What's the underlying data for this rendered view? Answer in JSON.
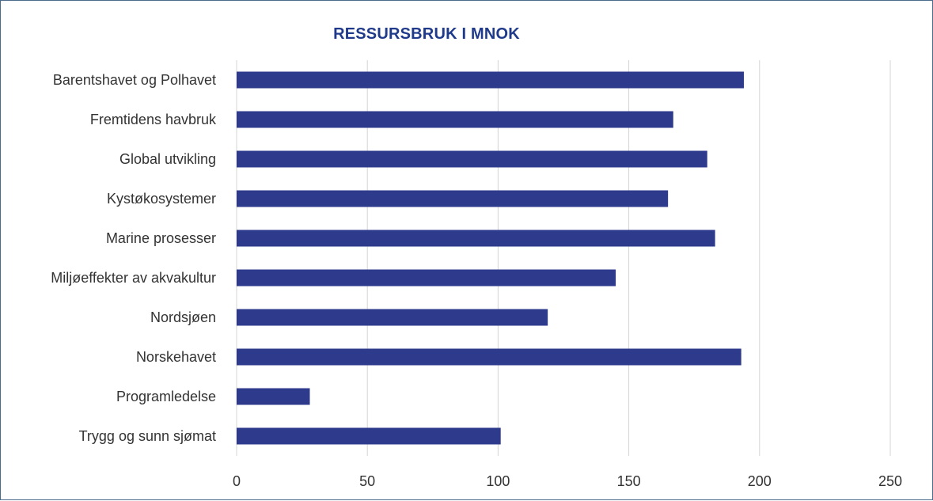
{
  "chart_data": {
    "type": "bar",
    "orientation": "horizontal",
    "title": "RESSURSBRUK I MNOK",
    "xlabel": "",
    "ylabel": "",
    "categories": [
      "Barentshavet og Polhavet",
      "Fremtidens havbruk",
      "Global utvikling",
      "Kystøkosystemer",
      "Marine prosesser",
      "Miljøeffekter av akvakultur",
      "Nordsjøen",
      "Norskehavet",
      "Programledelse",
      "Trygg og sunn sjømat"
    ],
    "values": [
      194,
      167,
      180,
      165,
      183,
      145,
      119,
      193,
      28,
      101
    ],
    "xlim": [
      0,
      250
    ],
    "xticks": [
      "0",
      "50",
      "100",
      "150",
      "200",
      "250"
    ],
    "grid": "vertical",
    "legend": "none",
    "bar_color": "#2e3a8c",
    "title_color": "#1f3a8a"
  }
}
